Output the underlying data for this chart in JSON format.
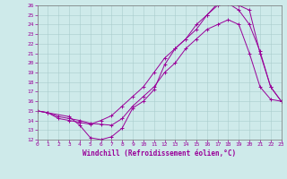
{
  "xlabel": "Windchill (Refroidissement éolien,°C)",
  "xlim": [
    0,
    23
  ],
  "ylim": [
    12,
    26
  ],
  "xticks": [
    0,
    1,
    2,
    3,
    4,
    5,
    6,
    7,
    8,
    9,
    10,
    11,
    12,
    13,
    14,
    15,
    16,
    17,
    18,
    19,
    20,
    21,
    22,
    23
  ],
  "yticks": [
    12,
    13,
    14,
    15,
    16,
    17,
    18,
    19,
    20,
    21,
    22,
    23,
    24,
    25,
    26
  ],
  "line1": {
    "x": [
      0,
      1,
      2,
      3,
      4,
      5,
      6,
      7,
      8,
      9,
      10,
      11,
      12,
      13,
      14,
      15,
      16,
      17,
      18,
      19,
      20,
      21,
      22,
      23
    ],
    "y": [
      15,
      14.8,
      14.4,
      14.2,
      14.0,
      13.7,
      13.6,
      13.5,
      14.2,
      15.5,
      16.5,
      17.5,
      19.0,
      20.0,
      21.5,
      22.5,
      23.5,
      24.0,
      24.5,
      24.0,
      21.0,
      17.5,
      16.2,
      16.0
    ]
  },
  "line2": {
    "x": [
      0,
      1,
      3,
      4,
      5,
      6,
      7,
      8,
      9,
      10,
      11,
      12,
      13,
      14,
      15,
      16,
      17,
      18,
      19,
      20,
      21,
      22,
      23
    ],
    "y": [
      15,
      14.8,
      14.4,
      13.5,
      12.2,
      12.0,
      12.3,
      13.2,
      15.3,
      16.0,
      17.2,
      19.8,
      21.5,
      22.5,
      24.0,
      25.0,
      26.0,
      26.3,
      26.0,
      25.5,
      21.0,
      17.5,
      16.0
    ]
  },
  "line3": {
    "x": [
      0,
      1,
      2,
      3,
      4,
      5,
      6,
      7,
      8,
      9,
      10,
      11,
      12,
      13,
      14,
      15,
      16,
      17,
      18,
      19,
      20,
      21,
      22,
      23
    ],
    "y": [
      15.0,
      14.8,
      14.2,
      14.0,
      13.8,
      13.6,
      14.0,
      14.5,
      15.5,
      16.5,
      17.5,
      19.0,
      20.5,
      21.5,
      22.5,
      23.5,
      25.0,
      26.2,
      26.2,
      25.5,
      24.0,
      21.2,
      17.5,
      16.0
    ]
  },
  "line_color": "#990099",
  "bg_color": "#ceeaea",
  "grid_color": "#aacccc",
  "tick_fontsize": 4.5,
  "xlabel_fontsize": 5.5
}
